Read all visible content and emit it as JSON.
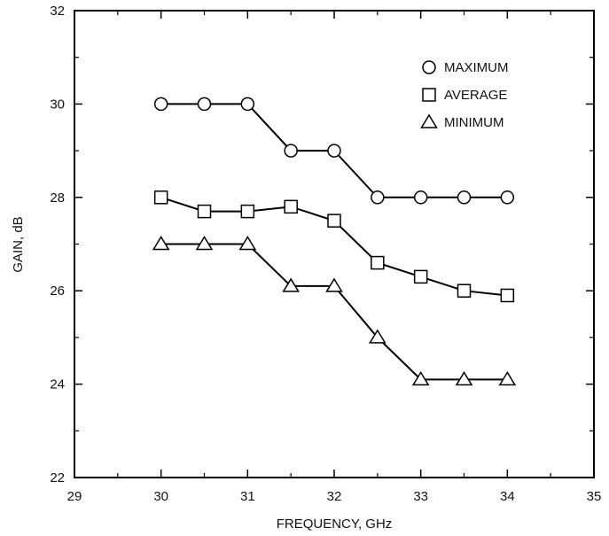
{
  "chart_data": {
    "type": "line",
    "xlabel": "FREQUENCY, GHz",
    "ylabel": "GAIN, dB",
    "xlim": [
      29,
      35
    ],
    "ylim": [
      22,
      32
    ],
    "xticks": [
      29,
      30,
      31,
      32,
      33,
      34,
      35
    ],
    "yticks": [
      22,
      24,
      26,
      28,
      30,
      32
    ],
    "x_minor_step": 0.5,
    "y_minor_step": 1,
    "grid": false,
    "legend_position": "top-right",
    "x": [
      30,
      30.5,
      31,
      31.5,
      32,
      32.5,
      33,
      33.5,
      34
    ],
    "series": [
      {
        "name": "MAXIMUM",
        "marker": "circle",
        "values": [
          30,
          30,
          30,
          29,
          29,
          28,
          28,
          28,
          28
        ]
      },
      {
        "name": "AVERAGE",
        "marker": "square",
        "values": [
          28,
          27.7,
          27.7,
          27.8,
          27.5,
          26.6,
          26.3,
          26.0,
          25.9
        ]
      },
      {
        "name": "MINIMUM",
        "marker": "triangle",
        "values": [
          27,
          27,
          27,
          26.1,
          26.1,
          25,
          24.1,
          24.1,
          24.1
        ]
      }
    ]
  }
}
